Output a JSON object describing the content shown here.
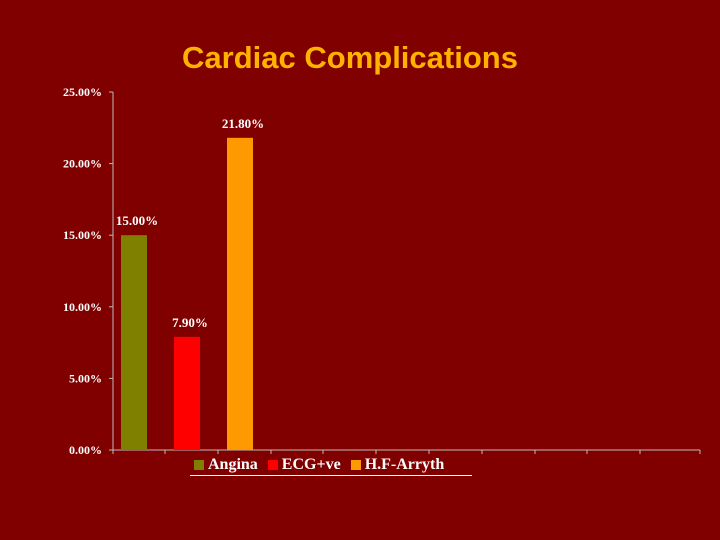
{
  "title": "Cardiac Complications",
  "chart_data": {
    "type": "bar",
    "title": "Cardiac Complications",
    "categories": [
      "Angina",
      "ECG+ve",
      "H.F-Arryth"
    ],
    "values": [
      15.0,
      7.9,
      21.8
    ],
    "data_labels": [
      "15.00%",
      "7.90%",
      "21.80%"
    ],
    "colors": [
      "#808000",
      "#FF0000",
      "#FF9900"
    ],
    "ylim": [
      0,
      25
    ],
    "yticks": [
      0,
      5,
      10,
      15,
      20,
      25
    ],
    "ytick_labels": [
      "0.00%",
      "5.00%",
      "10.00%",
      "15.00%",
      "20.00%",
      "25.00%"
    ],
    "xlabel": "",
    "ylabel": "",
    "grid": false,
    "legend_position": "bottom"
  }
}
